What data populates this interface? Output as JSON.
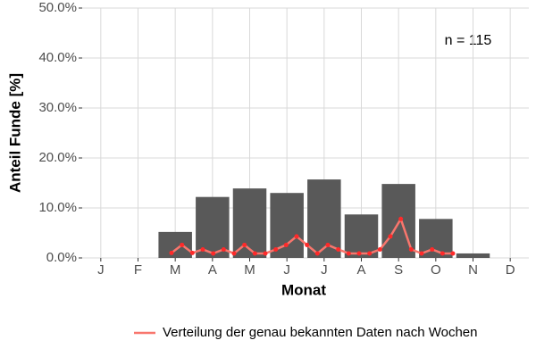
{
  "chart_data": {
    "type": "bar_line",
    "y_label": "Anteil Funde [%]",
    "x_label": "Monat",
    "annotation": "n = 115",
    "categories": [
      "J",
      "F",
      "M",
      "A",
      "M",
      "J",
      "J",
      "A",
      "S",
      "O",
      "N",
      "D"
    ],
    "values": [
      0,
      0,
      5.2,
      12.2,
      13.9,
      13.0,
      15.7,
      8.7,
      14.8,
      7.8,
      0.9,
      0
    ],
    "color": "#595959",
    "line": {
      "name": "Verteilung der genau bekannten Daten nach Wochen",
      "color": "#f8766d",
      "point_color": "#ff2a2a",
      "x": [
        2.9,
        3.18,
        3.46,
        3.74,
        4.02,
        4.3,
        4.58,
        4.86,
        5.14,
        5.42,
        5.7,
        5.98,
        6.26,
        6.54,
        6.82,
        7.1,
        7.38,
        7.66,
        7.94,
        8.22,
        8.5,
        8.78,
        9.06,
        9.34,
        9.62,
        9.9,
        10.18,
        10.46
      ],
      "values": [
        1.0,
        2.6,
        1.0,
        1.7,
        0.9,
        1.7,
        0.9,
        2.6,
        0.9,
        0.9,
        1.7,
        2.6,
        4.3,
        2.6,
        0.9,
        2.6,
        1.7,
        0.9,
        0.9,
        0.9,
        1.7,
        4.3,
        7.8,
        1.7,
        0.9,
        1.7,
        0.9,
        0.9
      ]
    },
    "xlim": [
      0.5,
      12.5
    ],
    "ylim": [
      0,
      50
    ],
    "yticks": [
      {
        "value": 0,
        "label": "0.0%"
      },
      {
        "value": 10,
        "label": "10.0%"
      },
      {
        "value": 20,
        "label": "20.0%"
      },
      {
        "value": 30,
        "label": "30.0%"
      },
      {
        "value": 40,
        "label": "40.0%"
      },
      {
        "value": 50,
        "label": "50.0%"
      }
    ],
    "grid": true
  }
}
